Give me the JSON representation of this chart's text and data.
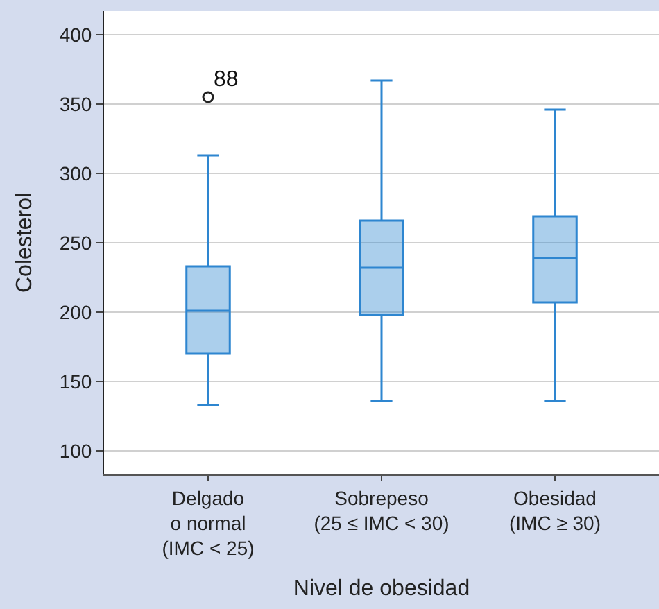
{
  "chart_data": {
    "type": "box",
    "xlabel": "Nivel de obesidad",
    "ylabel": "Colesterol",
    "categories": [
      "Delgado\no normal\n(IMC < 25)",
      "Sobrepeso\n(25 ≤ IMC < 30)",
      "Obesidad\n(IMC ≥ 30)"
    ],
    "boxes": [
      {
        "low": 133,
        "q1": 170,
        "median": 201,
        "q3": 233,
        "high": 313,
        "outliers": [
          355
        ]
      },
      {
        "low": 136,
        "q1": 198,
        "median": 232,
        "q3": 266,
        "high": 367
      },
      {
        "low": 136,
        "q1": 207,
        "median": 239,
        "q3": 269,
        "high": 346
      }
    ],
    "color": "#2e86d0",
    "ylim": [
      83,
      417
    ],
    "yticks": [
      100,
      150,
      200,
      250,
      300,
      350,
      400
    ],
    "grid": "y",
    "annotations": [
      "88"
    ]
  }
}
